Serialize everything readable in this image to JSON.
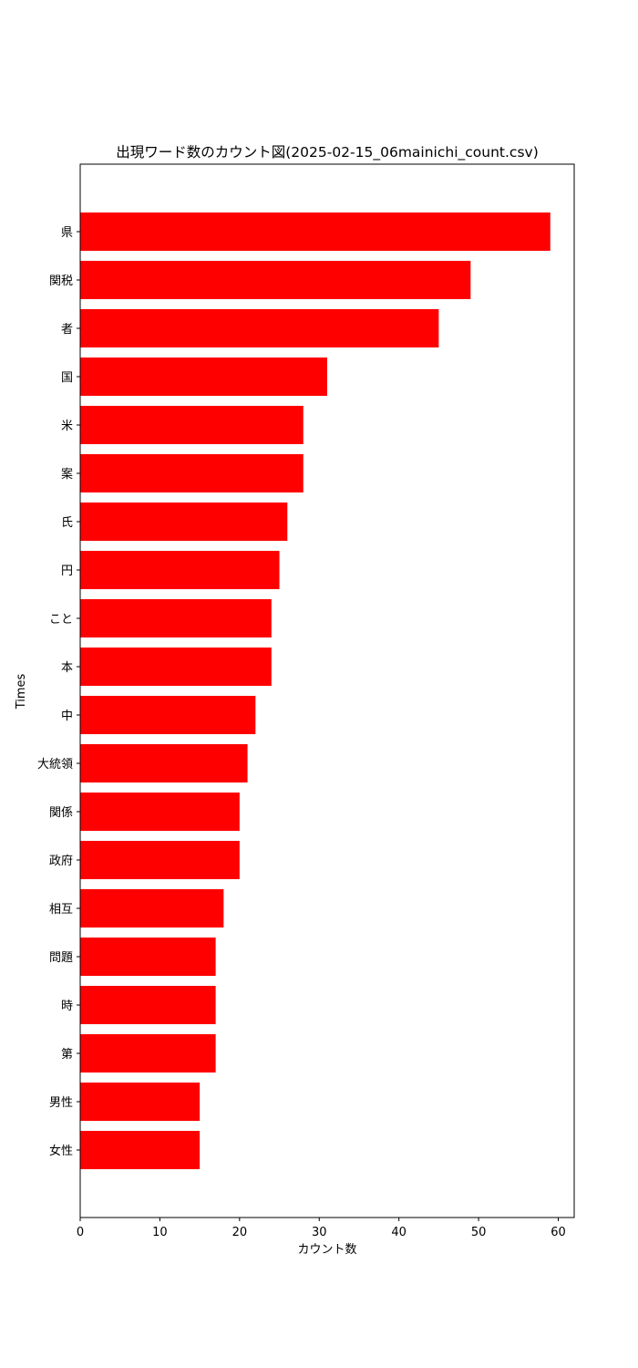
{
  "chart_data": {
    "type": "bar",
    "orientation": "horizontal",
    "title": "出現ワード数のカウント図(2025-02-15_06mainichi_count.csv)",
    "xlabel": "カウント数",
    "ylabel": "Times",
    "xlim": [
      0,
      62
    ],
    "xticks": [
      0,
      10,
      20,
      30,
      40,
      50,
      60
    ],
    "grid": false,
    "bar_color": "#ff0000",
    "categories": [
      "県",
      "関税",
      "者",
      "国",
      "米",
      "案",
      "氏",
      "円",
      "こと",
      "本",
      "中",
      "大統領",
      "関係",
      "政府",
      "相互",
      "問題",
      "時",
      "第",
      "男性",
      "女性"
    ],
    "values": [
      59,
      49,
      45,
      31,
      28,
      28,
      26,
      25,
      24,
      24,
      22,
      21,
      20,
      20,
      18,
      17,
      17,
      17,
      15,
      15
    ]
  }
}
